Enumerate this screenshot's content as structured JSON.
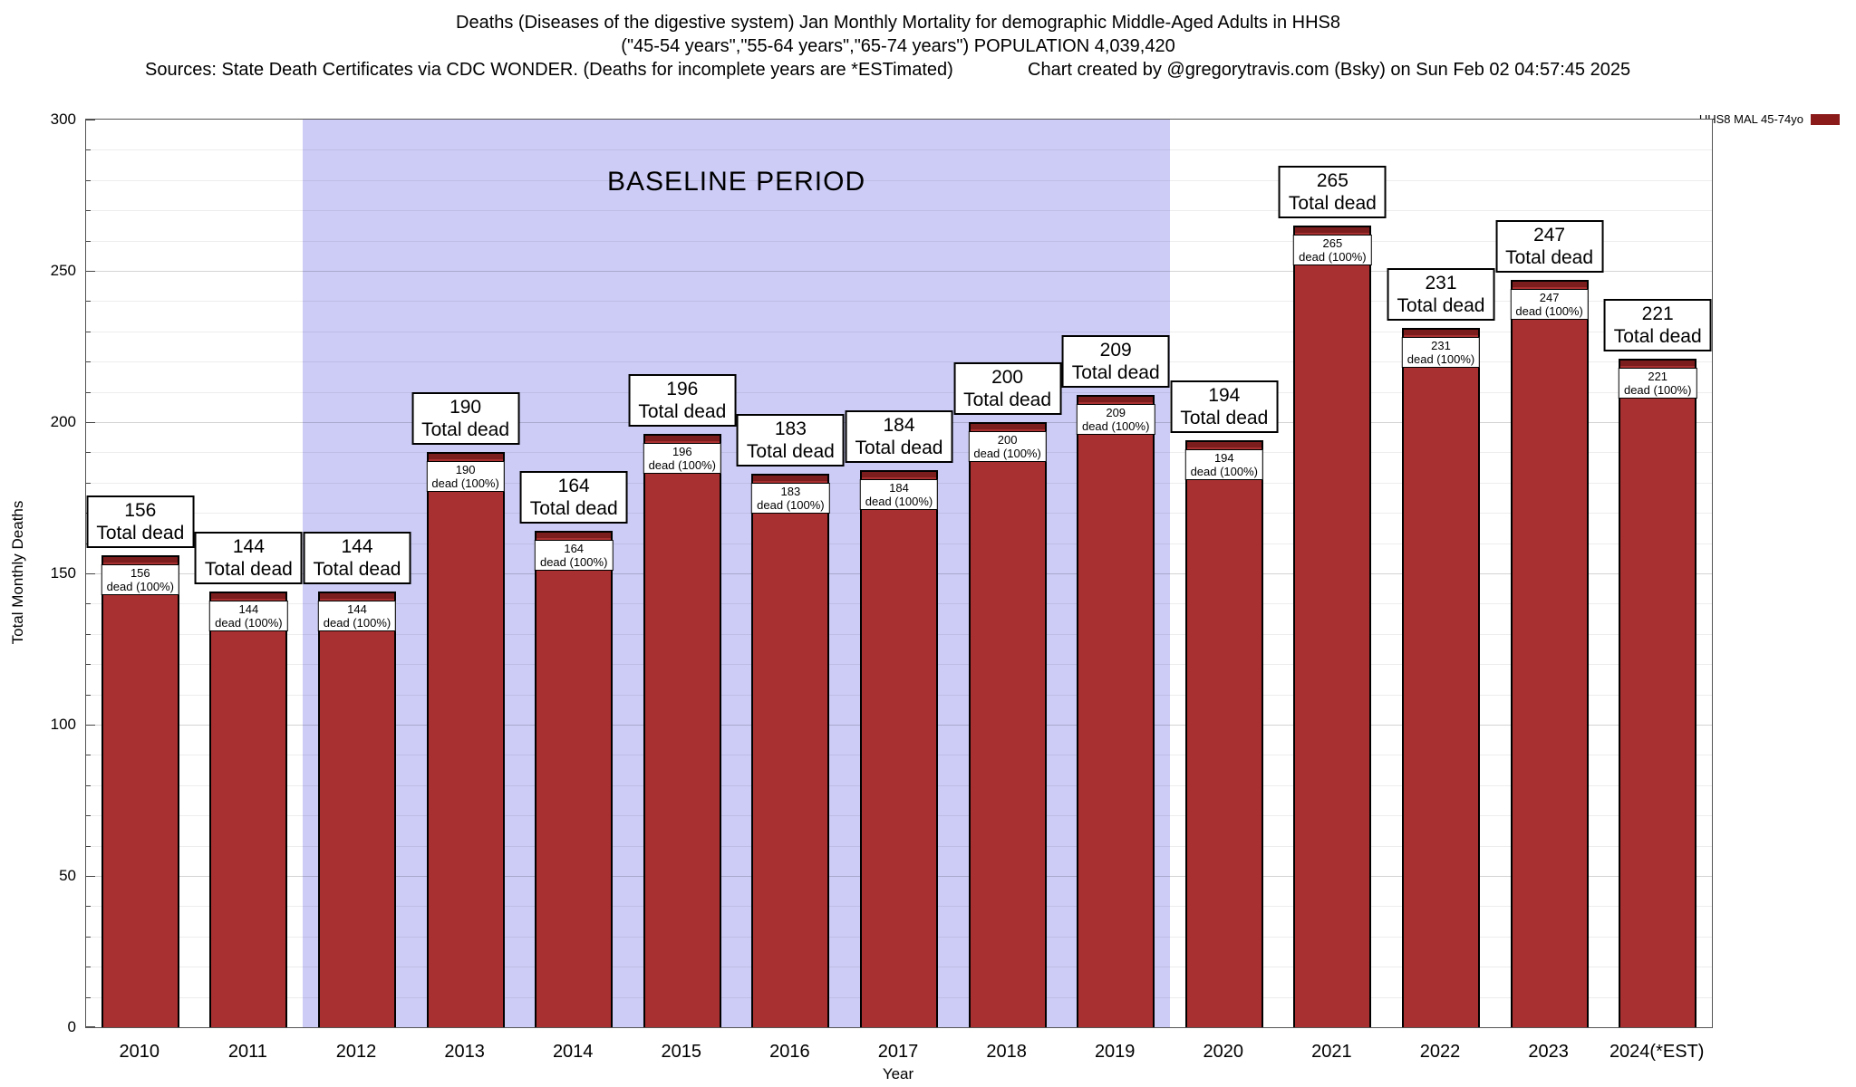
{
  "header": {
    "title_line1": "Deaths (Diseases of the digestive system) Jan Monthly Mortality for demographic Middle-Aged Adults in HHS8",
    "title_line2": "(\"45-54 years\",\"55-64 years\",\"65-74 years\") POPULATION 4,039,420",
    "sources": "Sources: State Death Certificates via CDC WONDER. (Deaths for incomplete years are *ESTimated)",
    "credit": "Chart created by @gregorytravis.com (Bsky) on Sun Feb 02 04:57:45 2025"
  },
  "legend": {
    "label": "HHS8 MAL 45-74yo",
    "color": "#8b1a1a"
  },
  "chart_data": {
    "type": "bar",
    "title": "Deaths (Diseases of the digestive system) Jan Monthly Mortality for demographic Middle-Aged Adults in HHS8",
    "categories": [
      "2010",
      "2011",
      "2012",
      "2013",
      "2014",
      "2015",
      "2016",
      "2017",
      "2018",
      "2019",
      "2020",
      "2021",
      "2022",
      "2023",
      "2024(*EST)"
    ],
    "values": [
      156,
      144,
      144,
      190,
      164,
      196,
      183,
      184,
      200,
      209,
      194,
      265,
      231,
      247,
      221
    ],
    "outer_label_suffix": "Total dead",
    "inner_label_suffix": "dead (100%)",
    "xlabel": "Year",
    "ylabel": "Total Monthly Deaths",
    "ylim": [
      0,
      300
    ],
    "ytick_step": 50,
    "minor_grid_step": 10,
    "grid": true,
    "bar_color": "#a93030",
    "bar_cap_color": "#7c1d1d",
    "baseline": {
      "label": "BASELINE PERIOD",
      "start_category": "2012",
      "end_category": "2019",
      "start_index": 2,
      "end_index": 9,
      "color": "#ccccf7"
    },
    "legend_position": "top-right"
  }
}
